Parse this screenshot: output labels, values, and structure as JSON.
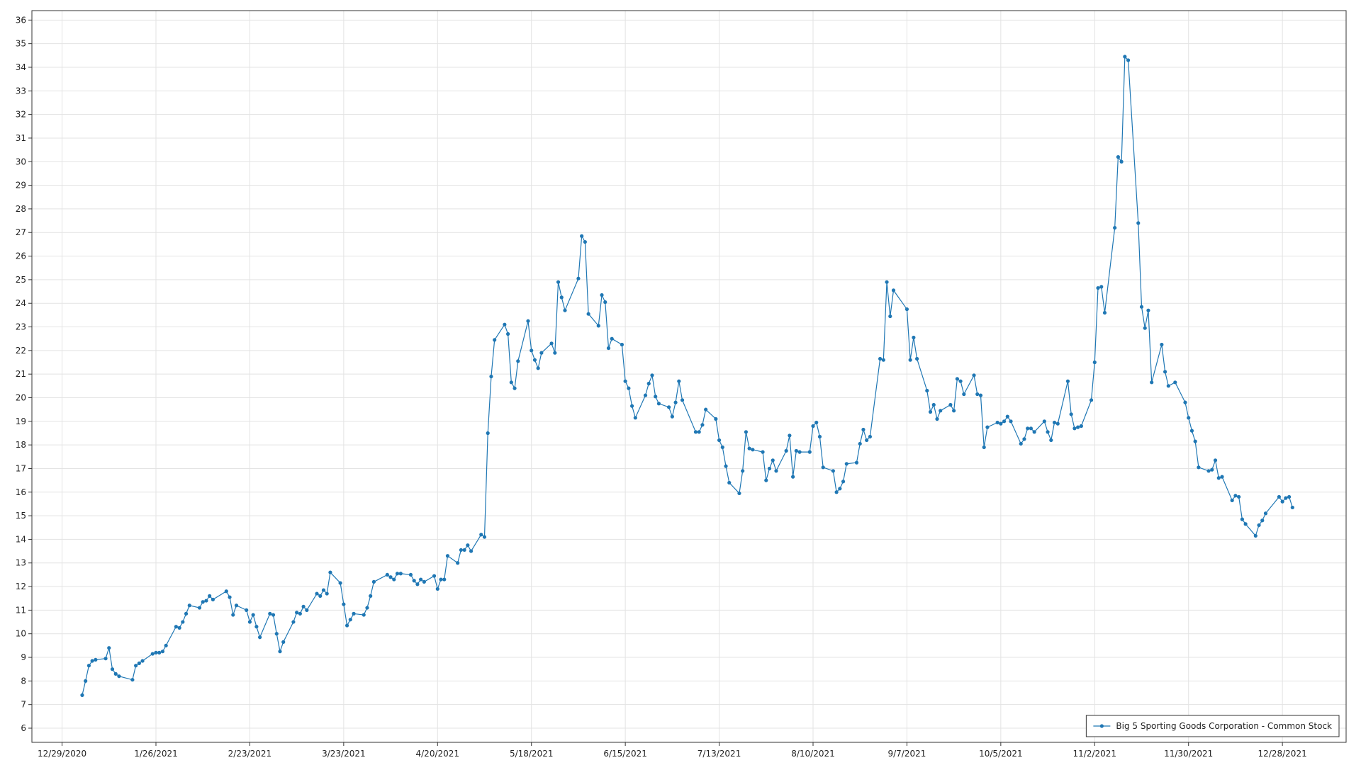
{
  "chart_data": {
    "type": "line",
    "xlim": [
      "12/20/2020",
      "1/16/2022"
    ],
    "ylim": [
      5.4,
      36.4
    ],
    "xticks": [
      "12/29/2020",
      "1/26/2021",
      "2/23/2021",
      "3/23/2021",
      "4/20/2021",
      "5/18/2021",
      "6/15/2021",
      "7/13/2021",
      "8/10/2021",
      "9/7/2021",
      "10/5/2021",
      "11/2/2021",
      "11/30/2021",
      "12/28/2021"
    ],
    "yticks": [
      6,
      7,
      8,
      9,
      10,
      11,
      12,
      13,
      14,
      15,
      16,
      17,
      18,
      19,
      20,
      21,
      22,
      23,
      24,
      25,
      26,
      27,
      28,
      29,
      30,
      31,
      32,
      33,
      34,
      35,
      36
    ],
    "grid": true,
    "legend": "bottom-right",
    "series": [
      {
        "name": "Big 5 Sporting Goods Corporation - Common Stock",
        "color": "#1f77b4",
        "x": [
          "1/4/2021",
          "1/5/2021",
          "1/6/2021",
          "1/7/2021",
          "1/8/2021",
          "1/11/2021",
          "1/12/2021",
          "1/13/2021",
          "1/14/2021",
          "1/15/2021",
          "1/19/2021",
          "1/20/2021",
          "1/21/2021",
          "1/22/2021",
          "1/25/2021",
          "1/26/2021",
          "1/27/2021",
          "1/28/2021",
          "1/29/2021",
          "2/1/2021",
          "2/2/2021",
          "2/3/2021",
          "2/4/2021",
          "2/5/2021",
          "2/8/2021",
          "2/9/2021",
          "2/10/2021",
          "2/11/2021",
          "2/12/2021",
          "2/16/2021",
          "2/17/2021",
          "2/18/2021",
          "2/19/2021",
          "2/22/2021",
          "2/23/2021",
          "2/24/2021",
          "2/25/2021",
          "2/26/2021",
          "3/1/2021",
          "3/2/2021",
          "3/3/2021",
          "3/4/2021",
          "3/5/2021",
          "3/8/2021",
          "3/9/2021",
          "3/10/2021",
          "3/11/2021",
          "3/12/2021",
          "3/15/2021",
          "3/16/2021",
          "3/17/2021",
          "3/18/2021",
          "3/19/2021",
          "3/22/2021",
          "3/23/2021",
          "3/24/2021",
          "3/25/2021",
          "3/26/2021",
          "3/29/2021",
          "3/30/2021",
          "3/31/2021",
          "4/1/2021",
          "4/5/2021",
          "4/6/2021",
          "4/7/2021",
          "4/8/2021",
          "4/9/2021",
          "4/12/2021",
          "4/13/2021",
          "4/14/2021",
          "4/15/2021",
          "4/16/2021",
          "4/19/2021",
          "4/20/2021",
          "4/21/2021",
          "4/22/2021",
          "4/23/2021",
          "4/26/2021",
          "4/27/2021",
          "4/28/2021",
          "4/29/2021",
          "4/30/2021",
          "5/3/2021",
          "5/4/2021",
          "5/5/2021",
          "5/6/2021",
          "5/7/2021",
          "5/10/2021",
          "5/11/2021",
          "5/12/2021",
          "5/13/2021",
          "5/14/2021",
          "5/17/2021",
          "5/18/2021",
          "5/19/2021",
          "5/20/2021",
          "5/21/2021",
          "5/24/2021",
          "5/25/2021",
          "5/26/2021",
          "5/27/2021",
          "5/28/2021",
          "6/1/2021",
          "6/2/2021",
          "6/3/2021",
          "6/4/2021",
          "6/7/2021",
          "6/8/2021",
          "6/9/2021",
          "6/10/2021",
          "6/11/2021",
          "6/14/2021",
          "6/15/2021",
          "6/16/2021",
          "6/17/2021",
          "6/18/2021",
          "6/21/2021",
          "6/22/2021",
          "6/23/2021",
          "6/24/2021",
          "6/25/2021",
          "6/28/2021",
          "6/29/2021",
          "6/30/2021",
          "7/1/2021",
          "7/2/2021",
          "7/6/2021",
          "7/7/2021",
          "7/8/2021",
          "7/9/2021",
          "7/12/2021",
          "7/13/2021",
          "7/14/2021",
          "7/15/2021",
          "7/16/2021",
          "7/19/2021",
          "7/20/2021",
          "7/21/2021",
          "7/22/2021",
          "7/23/2021",
          "7/26/2021",
          "7/27/2021",
          "7/28/2021",
          "7/29/2021",
          "7/30/2021",
          "8/2/2021",
          "8/3/2021",
          "8/4/2021",
          "8/5/2021",
          "8/6/2021",
          "8/9/2021",
          "8/10/2021",
          "8/11/2021",
          "8/12/2021",
          "8/13/2021",
          "8/16/2021",
          "8/17/2021",
          "8/18/2021",
          "8/19/2021",
          "8/20/2021",
          "8/23/2021",
          "8/24/2021",
          "8/25/2021",
          "8/26/2021",
          "8/27/2021",
          "8/30/2021",
          "8/31/2021",
          "9/1/2021",
          "9/2/2021",
          "9/3/2021",
          "9/7/2021",
          "9/8/2021",
          "9/9/2021",
          "9/10/2021",
          "9/13/2021",
          "9/14/2021",
          "9/15/2021",
          "9/16/2021",
          "9/17/2021",
          "9/20/2021",
          "9/21/2021",
          "9/22/2021",
          "9/23/2021",
          "9/24/2021",
          "9/27/2021",
          "9/28/2021",
          "9/29/2021",
          "9/30/2021",
          "10/1/2021",
          "10/4/2021",
          "10/5/2021",
          "10/6/2021",
          "10/7/2021",
          "10/8/2021",
          "10/11/2021",
          "10/12/2021",
          "10/13/2021",
          "10/14/2021",
          "10/15/2021",
          "10/18/2021",
          "10/19/2021",
          "10/20/2021",
          "10/21/2021",
          "10/22/2021",
          "10/25/2021",
          "10/26/2021",
          "10/27/2021",
          "10/28/2021",
          "10/29/2021",
          "11/1/2021",
          "11/2/2021",
          "11/3/2021",
          "11/4/2021",
          "11/5/2021",
          "11/8/2021",
          "11/9/2021",
          "11/10/2021",
          "11/11/2021",
          "11/12/2021",
          "11/15/2021",
          "11/16/2021",
          "11/17/2021",
          "11/18/2021",
          "11/19/2021",
          "11/22/2021",
          "11/23/2021",
          "11/24/2021",
          "11/26/2021",
          "11/29/2021",
          "11/30/2021",
          "12/1/2021",
          "12/2/2021",
          "12/3/2021",
          "12/6/2021",
          "12/7/2021",
          "12/8/2021",
          "12/9/2021",
          "12/10/2021",
          "12/13/2021",
          "12/14/2021",
          "12/15/2021",
          "12/16/2021",
          "12/17/2021",
          "12/20/2021",
          "12/21/2021",
          "12/22/2021",
          "12/23/2021",
          "12/27/2021",
          "12/28/2021",
          "12/29/2021",
          "12/30/2021",
          "12/31/2021"
        ],
        "values": [
          7.4,
          8.0,
          8.65,
          8.85,
          8.9,
          8.95,
          9.4,
          8.5,
          8.3,
          8.2,
          8.05,
          8.65,
          8.75,
          8.85,
          9.15,
          9.2,
          9.2,
          9.25,
          9.5,
          10.3,
          10.25,
          10.5,
          10.85,
          11.2,
          11.1,
          11.35,
          11.4,
          11.6,
          11.45,
          11.8,
          11.55,
          10.8,
          11.2,
          11.0,
          10.5,
          10.8,
          10.3,
          9.85,
          10.85,
          10.8,
          10.0,
          9.25,
          9.65,
          10.5,
          10.9,
          10.85,
          11.15,
          11.0,
          11.7,
          11.6,
          11.85,
          11.7,
          12.6,
          12.15,
          11.25,
          10.35,
          10.6,
          10.85,
          10.8,
          11.1,
          11.6,
          12.2,
          12.5,
          12.4,
          12.3,
          12.55,
          12.55,
          12.5,
          12.25,
          12.1,
          12.3,
          12.2,
          12.45,
          11.9,
          12.3,
          12.3,
          13.3,
          13.0,
          13.55,
          13.55,
          13.75,
          13.5,
          14.2,
          14.1,
          18.5,
          20.9,
          22.45,
          23.1,
          22.7,
          20.65,
          20.4,
          21.55,
          23.25,
          22.0,
          21.6,
          21.25,
          21.9,
          22.3,
          21.9,
          24.9,
          24.25,
          23.7,
          25.05,
          26.85,
          26.6,
          23.55,
          23.05,
          24.35,
          24.05,
          22.1,
          22.5,
          22.25,
          20.7,
          20.4,
          19.65,
          19.15,
          20.1,
          20.6,
          20.95,
          20.05,
          19.75,
          19.6,
          19.2,
          19.8,
          20.7,
          19.9,
          18.55,
          18.55,
          18.85,
          19.5,
          19.1,
          18.2,
          17.9,
          17.1,
          16.4,
          15.95,
          16.9,
          18.55,
          17.85,
          17.8,
          17.7,
          16.5,
          17.0,
          17.35,
          16.9,
          17.75,
          18.4,
          16.65,
          17.75,
          17.7,
          17.7,
          18.8,
          18.95,
          18.35,
          17.05,
          16.9,
          16.0,
          16.15,
          16.45,
          17.2,
          17.25,
          18.05,
          18.65,
          18.2,
          18.35,
          21.65,
          21.6,
          24.9,
          23.45,
          24.55,
          23.75,
          21.6,
          22.55,
          21.65,
          20.3,
          19.4,
          19.7,
          19.1,
          19.45,
          19.7,
          19.45,
          20.8,
          20.7,
          20.15,
          20.95,
          20.15,
          20.1,
          17.9,
          18.75,
          18.95,
          18.9,
          19.0,
          19.2,
          19.0,
          18.05,
          18.25,
          18.7,
          18.7,
          18.55,
          19.0,
          18.55,
          18.2,
          18.95,
          18.9,
          20.7,
          19.3,
          18.7,
          18.75,
          18.8,
          19.9,
          21.5,
          24.65,
          24.7,
          23.6,
          27.2,
          30.2,
          30.0,
          34.45,
          34.3,
          27.4,
          23.85,
          22.95,
          23.7,
          20.65,
          22.25,
          21.1,
          20.5,
          20.65,
          19.8,
          19.15,
          18.6,
          18.15,
          17.05,
          16.9,
          16.95,
          17.35,
          16.6,
          16.65,
          15.65,
          15.85,
          15.8,
          14.85,
          14.65,
          14.15,
          14.6,
          14.8,
          15.1,
          15.8,
          15.6,
          15.75,
          15.8,
          15.35
        ]
      }
    ]
  }
}
